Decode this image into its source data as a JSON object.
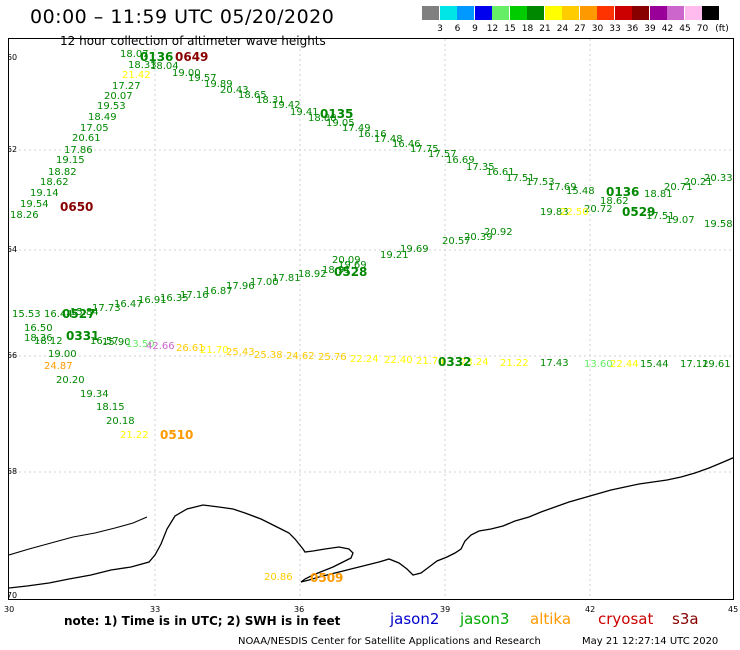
{
  "title": "00:00 – 11:59 UTC 05/20/2020",
  "subtitle": "12 hour collection of altimeter wave heights",
  "colorbar": {
    "unit": "(ft)",
    "colors": [
      "#808080",
      "#00e5e5",
      "#0099ff",
      "#0000ee",
      "#66ee66",
      "#00cc00",
      "#008800",
      "#ffff00",
      "#ffcc00",
      "#ff9900",
      "#ff3300",
      "#cc0000",
      "#880000",
      "#990099",
      "#cc66cc",
      "#ffbbee",
      "#000000"
    ],
    "labels": [
      "3",
      "6",
      "9",
      "12",
      "15",
      "18",
      "21",
      "24",
      "27",
      "30",
      "33",
      "36",
      "39",
      "42",
      "45",
      "70"
    ]
  },
  "lat_labels": [
    "-60",
    "-62",
    "-64",
    "-66",
    "-68",
    "-70"
  ],
  "lon_labels": [
    "30",
    "33",
    "36",
    "39",
    "42",
    "45"
  ],
  "times": [
    {
      "text": "0136",
      "color": "#008800"
    },
    {
      "text": "0649",
      "color": "#880000"
    },
    {
      "text": "0135",
      "color": "#008800"
    },
    {
      "text": "0650",
      "color": "#880000"
    },
    {
      "text": "0136",
      "color": "#008800"
    },
    {
      "text": "0529",
      "color": "#008800"
    },
    {
      "text": "0528",
      "color": "#008800"
    },
    {
      "text": "0527",
      "color": "#008800"
    },
    {
      "text": "0331",
      "color": "#008800"
    },
    {
      "text": "0332",
      "color": "#008800"
    },
    {
      "text": "0510",
      "color": "#ff9900"
    },
    {
      "text": "0509",
      "color": "#ff9900"
    }
  ],
  "wave_labels": [
    {
      "text": "18.07",
      "color": "#008800"
    },
    {
      "text": "18.33",
      "color": "#008800"
    },
    {
      "text": "18.04",
      "color": "#008800"
    },
    {
      "text": "19.00",
      "color": "#008800"
    },
    {
      "text": "19.57",
      "color": "#008800"
    },
    {
      "text": "19.89",
      "color": "#008800"
    },
    {
      "text": "20.43",
      "color": "#008800"
    },
    {
      "text": "18.65",
      "color": "#008800"
    },
    {
      "text": "18.31",
      "color": "#008800"
    },
    {
      "text": "19.42",
      "color": "#008800"
    },
    {
      "text": "19.41",
      "color": "#008800"
    },
    {
      "text": "18.88",
      "color": "#008800"
    },
    {
      "text": "19.05",
      "color": "#008800"
    },
    {
      "text": "17.49",
      "color": "#008800"
    },
    {
      "text": "16.16",
      "color": "#008800"
    },
    {
      "text": "17.48",
      "color": "#008800"
    },
    {
      "text": "16.46",
      "color": "#008800"
    },
    {
      "text": "17.75",
      "color": "#008800"
    },
    {
      "text": "17.57",
      "color": "#008800"
    },
    {
      "text": "16.69",
      "color": "#008800"
    },
    {
      "text": "17.35",
      "color": "#008800"
    },
    {
      "text": "16.61",
      "color": "#008800"
    },
    {
      "text": "17.51",
      "color": "#008800"
    },
    {
      "text": "17.53",
      "color": "#008800"
    },
    {
      "text": "17.69",
      "color": "#008800"
    },
    {
      "text": "15.48",
      "color": "#008800"
    },
    {
      "text": "21.42",
      "color": "#ffff00"
    },
    {
      "text": "17.27",
      "color": "#008800"
    },
    {
      "text": "20.07",
      "color": "#008800"
    },
    {
      "text": "19.53",
      "color": "#008800"
    },
    {
      "text": "18.49",
      "color": "#008800"
    },
    {
      "text": "17.05",
      "color": "#008800"
    },
    {
      "text": "20.61",
      "color": "#008800"
    },
    {
      "text": "17.86",
      "color": "#008800"
    },
    {
      "text": "19.15",
      "color": "#008800"
    },
    {
      "text": "18.82",
      "color": "#008800"
    },
    {
      "text": "18.62",
      "color": "#008800"
    },
    {
      "text": "19.14",
      "color": "#008800"
    },
    {
      "text": "19.54",
      "color": "#008800"
    },
    {
      "text": "18.26",
      "color": "#008800"
    },
    {
      "text": "20.72",
      "color": "#008800"
    },
    {
      "text": "18.81",
      "color": "#008800"
    },
    {
      "text": "20.71",
      "color": "#008800"
    },
    {
      "text": "20.21",
      "color": "#008800"
    },
    {
      "text": "20.33",
      "color": "#008800"
    },
    {
      "text": "17.51",
      "color": "#008800"
    },
    {
      "text": "19.07",
      "color": "#008800"
    },
    {
      "text": "19.58",
      "color": "#008800"
    },
    {
      "text": "20.92",
      "color": "#008800"
    },
    {
      "text": "20.39",
      "color": "#008800"
    },
    {
      "text": "20.57",
      "color": "#008800"
    },
    {
      "text": "19.69",
      "color": "#008800"
    },
    {
      "text": "19.21",
      "color": "#008800"
    },
    {
      "text": "20.09",
      "color": "#008800"
    },
    {
      "text": "19.69",
      "color": "#008800"
    },
    {
      "text": "18.91",
      "color": "#008800"
    },
    {
      "text": "18.92",
      "color": "#008800"
    },
    {
      "text": "17.81",
      "color": "#008800"
    },
    {
      "text": "17.00",
      "color": "#008800"
    },
    {
      "text": "17.96",
      "color": "#008800"
    },
    {
      "text": "16.87",
      "color": "#008800"
    },
    {
      "text": "17.16",
      "color": "#008800"
    },
    {
      "text": "16.35",
      "color": "#008800"
    },
    {
      "text": "16.91",
      "color": "#008800"
    },
    {
      "text": "16.47",
      "color": "#008800"
    },
    {
      "text": "17.73",
      "color": "#008800"
    },
    {
      "text": "15.84",
      "color": "#008800"
    },
    {
      "text": "16.44",
      "color": "#008800"
    },
    {
      "text": "15.53",
      "color": "#008800"
    },
    {
      "text": "16.50",
      "color": "#008800"
    },
    {
      "text": "18.36",
      "color": "#008800"
    },
    {
      "text": "18.12",
      "color": "#008800"
    },
    {
      "text": "16.57",
      "color": "#008800"
    },
    {
      "text": "15.90",
      "color": "#008800"
    },
    {
      "text": "13.50",
      "color": "#66ee66"
    },
    {
      "text": "42.66",
      "color": "#cc66cc"
    },
    {
      "text": "26.61",
      "color": "#ffcc00"
    },
    {
      "text": "21.70",
      "color": "#ffff00"
    },
    {
      "text": "25.43",
      "color": "#ffcc00"
    },
    {
      "text": "25.38",
      "color": "#ffcc00"
    },
    {
      "text": "24.62",
      "color": "#ffcc00"
    },
    {
      "text": "25.76",
      "color": "#ffcc00"
    },
    {
      "text": "22.24",
      "color": "#ffff00"
    },
    {
      "text": "22.40",
      "color": "#ffff00"
    },
    {
      "text": "21.74",
      "color": "#ffff00"
    },
    {
      "text": "23.24",
      "color": "#ffff00"
    },
    {
      "text": "21.22",
      "color": "#ffff00"
    },
    {
      "text": "17.43",
      "color": "#008800"
    },
    {
      "text": "13.60",
      "color": "#66ee66"
    },
    {
      "text": "22.44",
      "color": "#ffff00"
    },
    {
      "text": "15.44",
      "color": "#008800"
    },
    {
      "text": "17.12",
      "color": "#008800"
    },
    {
      "text": "19.61",
      "color": "#008800"
    },
    {
      "text": "19.00",
      "color": "#008800"
    },
    {
      "text": "24.87",
      "color": "#ff9900"
    },
    {
      "text": "20.20",
      "color": "#008800"
    },
    {
      "text": "19.34",
      "color": "#008800"
    },
    {
      "text": "18.15",
      "color": "#008800"
    },
    {
      "text": "20.18",
      "color": "#008800"
    },
    {
      "text": "21.22",
      "color": "#ffff00"
    },
    {
      "text": "20.86",
      "color": "#ffcc00"
    },
    {
      "text": "19.83",
      "color": "#008800"
    },
    {
      "text": "22.50",
      "color": "#ffff00"
    },
    {
      "text": "18.62",
      "color": "#008800"
    }
  ],
  "note": "note: 1) Time is in UTC; 2) SWH is in feet",
  "legend": [
    {
      "name": "jason2",
      "color": "#0000cc"
    },
    {
      "name": "jason3",
      "color": "#00aa00"
    },
    {
      "name": "altika",
      "color": "#ff9900"
    },
    {
      "name": "cryosat",
      "color": "#cc0000"
    },
    {
      "name": "s3a",
      "color": "#880000"
    }
  ],
  "footer_left": "NOAA/NESDIS Center for Satellite Applications and Research",
  "footer_right": "May 21 12:27:14 UTC 2020"
}
